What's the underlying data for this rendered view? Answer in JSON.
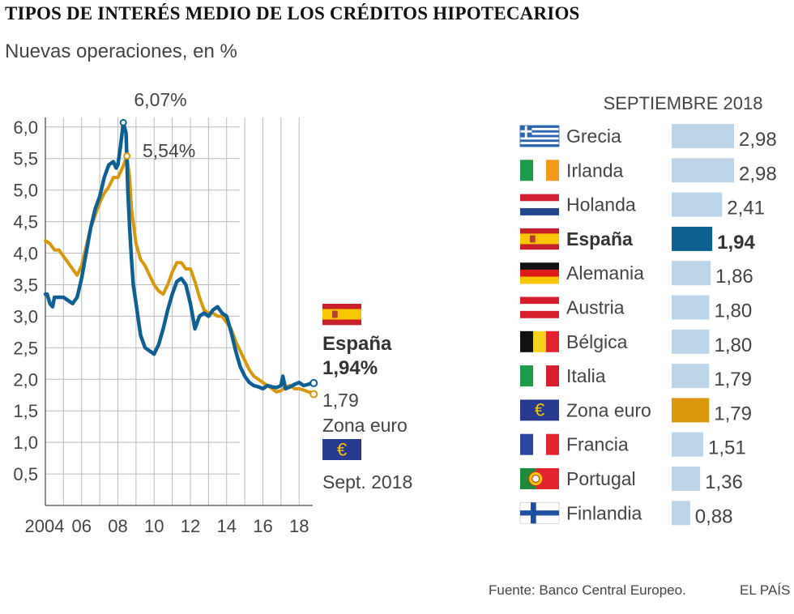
{
  "title": "TIPOS DE INTERÉS MEDIO DE LOS CRÉDITOS HIPOTECARIOS",
  "subtitle": "Nuevas operaciones, en %",
  "source": "Fuente: Banco Central Europeo.",
  "brand": "EL PAÍS",
  "colors": {
    "spain": "#0e5f92",
    "euro": "#d9970b",
    "bar": "#bdd5e9",
    "grid": "#bbbbbb",
    "text": "#444444"
  },
  "chart_data": [
    {
      "type": "line",
      "title": "",
      "xlabel": "",
      "ylabel": "",
      "ylim": [
        0,
        6.1
      ],
      "xlim": [
        2004,
        2018.75
      ],
      "yticks": [
        0.5,
        1.0,
        1.5,
        2.0,
        2.5,
        3.0,
        3.5,
        4.0,
        4.5,
        5.0,
        5.5,
        6.0
      ],
      "ytick_labels": [
        "0,5",
        "1,0",
        "1,5",
        "2,0",
        "2,5",
        "3,0",
        "3,5",
        "4,0",
        "4,5",
        "5,0",
        "5,5",
        "6,0"
      ],
      "xticks": [
        2004,
        2006,
        2008,
        2010,
        2012,
        2014,
        2016,
        2018
      ],
      "xtick_labels": [
        "2004",
        "06",
        "08",
        "10",
        "12",
        "14",
        "16",
        "18"
      ],
      "series": [
        {
          "name": "Zona euro",
          "color": "#d9970b",
          "x": [
            2004.0,
            2004.25,
            2004.5,
            2004.75,
            2005.0,
            2005.25,
            2005.5,
            2005.75,
            2006.0,
            2006.25,
            2006.5,
            2006.75,
            2007.0,
            2007.25,
            2007.5,
            2007.75,
            2008.0,
            2008.25,
            2008.5,
            2008.65,
            2008.75,
            2009.0,
            2009.25,
            2009.5,
            2009.75,
            2010.0,
            2010.25,
            2010.5,
            2010.75,
            2011.0,
            2011.25,
            2011.5,
            2011.75,
            2012.0,
            2012.25,
            2012.5,
            2012.75,
            2013.0,
            2013.25,
            2013.5,
            2013.75,
            2014.0,
            2014.25,
            2014.5,
            2014.75,
            2015.0,
            2015.25,
            2015.5,
            2015.75,
            2016.0,
            2016.25,
            2016.5,
            2016.75,
            2017.0,
            2017.25,
            2017.5,
            2017.75,
            2018.0,
            2018.25,
            2018.5,
            2018.67
          ],
          "values": [
            4.2,
            4.15,
            4.05,
            4.05,
            3.95,
            3.85,
            3.75,
            3.65,
            3.8,
            4.1,
            4.4,
            4.6,
            4.8,
            4.95,
            5.05,
            5.2,
            5.2,
            5.35,
            5.54,
            5.2,
            4.7,
            4.15,
            3.9,
            3.8,
            3.65,
            3.5,
            3.4,
            3.35,
            3.5,
            3.7,
            3.85,
            3.85,
            3.75,
            3.75,
            3.55,
            3.3,
            3.1,
            3.05,
            3.05,
            3.0,
            3.0,
            2.9,
            2.8,
            2.6,
            2.45,
            2.3,
            2.15,
            2.05,
            2.0,
            1.95,
            1.9,
            1.85,
            1.8,
            1.82,
            1.88,
            1.9,
            1.85,
            1.85,
            1.83,
            1.8,
            1.79
          ]
        },
        {
          "name": "España",
          "color": "#0e5f92",
          "x": [
            2004.0,
            2004.1,
            2004.25,
            2004.4,
            2004.5,
            2004.75,
            2005.0,
            2005.25,
            2005.5,
            2005.75,
            2006.0,
            2006.25,
            2006.5,
            2006.75,
            2007.0,
            2007.25,
            2007.5,
            2007.75,
            2007.9,
            2008.0,
            2008.15,
            2008.3,
            2008.45,
            2008.55,
            2008.65,
            2008.75,
            2008.85,
            2009.0,
            2009.25,
            2009.5,
            2009.75,
            2010.0,
            2010.25,
            2010.5,
            2010.75,
            2011.0,
            2011.25,
            2011.5,
            2011.75,
            2012.0,
            2012.25,
            2012.5,
            2012.75,
            2013.0,
            2013.25,
            2013.5,
            2013.75,
            2014.0,
            2014.25,
            2014.5,
            2014.75,
            2015.0,
            2015.25,
            2015.5,
            2015.75,
            2016.0,
            2016.25,
            2016.5,
            2016.75,
            2017.0,
            2017.1,
            2017.25,
            2017.5,
            2017.75,
            2018.0,
            2018.25,
            2018.5,
            2018.67
          ],
          "values": [
            3.35,
            3.35,
            3.2,
            3.15,
            3.3,
            3.3,
            3.3,
            3.25,
            3.2,
            3.3,
            3.6,
            4.0,
            4.4,
            4.7,
            4.9,
            5.2,
            5.4,
            5.45,
            5.35,
            5.4,
            5.7,
            6.07,
            5.9,
            5.0,
            4.4,
            3.9,
            3.5,
            3.2,
            2.7,
            2.5,
            2.45,
            2.4,
            2.55,
            2.8,
            3.1,
            3.35,
            3.55,
            3.6,
            3.5,
            3.2,
            2.8,
            3.0,
            3.05,
            3.0,
            3.1,
            3.15,
            3.05,
            3.0,
            2.75,
            2.45,
            2.2,
            2.05,
            1.95,
            1.9,
            1.88,
            1.85,
            1.9,
            1.88,
            1.87,
            1.9,
            2.05,
            1.85,
            1.88,
            1.92,
            1.95,
            1.9,
            1.92,
            1.94
          ]
        }
      ],
      "annotations": [
        {
          "text": "6,07%",
          "x": 2008.3,
          "y": 6.07
        },
        {
          "text": "5,54%",
          "x": 2008.5,
          "y": 5.54
        }
      ]
    },
    {
      "type": "bar",
      "orientation": "horizontal",
      "title": "SEPTIEMBRE 2018",
      "categories": [
        "Grecia",
        "Irlanda",
        "Holanda",
        "España",
        "Alemania",
        "Austria",
        "Bélgica",
        "Italia",
        "Zona euro",
        "Francia",
        "Portugal",
        "Finlandia"
      ],
      "values": [
        2.98,
        2.98,
        2.41,
        1.94,
        1.86,
        1.8,
        1.8,
        1.79,
        1.79,
        1.51,
        1.36,
        0.88
      ],
      "value_labels": [
        "2,98",
        "2,98",
        "2,41",
        "1,94",
        "1,86",
        "1,80",
        "1,80",
        "1,79",
        "1,79",
        "1,51",
        "1,36",
        "0,88"
      ],
      "highlight": {
        "España": "#0e5f92",
        "Zona euro": "#d9970b"
      },
      "bold_category": "España"
    }
  ],
  "legend": {
    "spain_label": "España",
    "spain_value": "1,94%",
    "euro_value": "1,79",
    "euro_label": "Zona euro",
    "date": "Sept. 2018"
  },
  "flags": {
    "Grecia": "greece-flag",
    "Irlanda": "ireland-flag",
    "Holanda": "netherlands-flag",
    "España": "spain-flag",
    "Alemania": "germany-flag",
    "Austria": "austria-flag",
    "Bélgica": "belgium-flag",
    "Italia": "italy-flag",
    "Zona euro": "eu-flag",
    "Francia": "france-flag",
    "Portugal": "portugal-flag",
    "Finlandia": "finland-flag"
  }
}
